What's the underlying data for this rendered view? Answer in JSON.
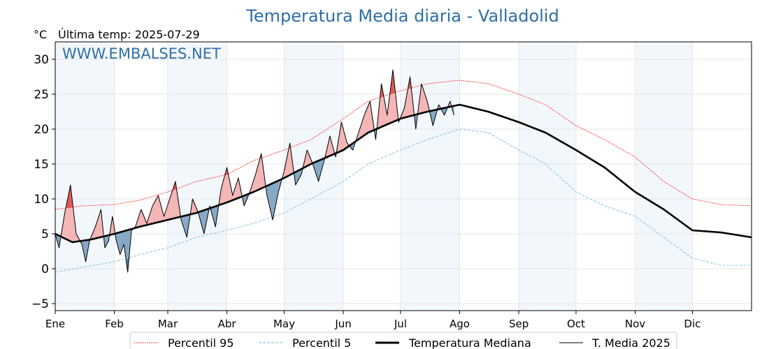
{
  "chart_data": {
    "type": "line",
    "title": "Temperatura Media diaria - Valladolid",
    "unit_label": "°C",
    "subtitle": "Última temp: 2025-07-29",
    "watermark": "WWW.EMBALSES.NET",
    "x_tick_labels": [
      "Ene",
      "Feb",
      "Mar",
      "Abr",
      "May",
      "Jun",
      "Jul",
      "Ago",
      "Sep",
      "Oct",
      "Nov",
      "Dic"
    ],
    "y_tick_labels": [
      "30",
      "25",
      "20",
      "15",
      "10",
      "5",
      "0",
      "−5"
    ],
    "y_ticks": [
      30,
      25,
      20,
      15,
      10,
      5,
      0,
      -5
    ],
    "ylim": [
      -6,
      32.5
    ],
    "xlim": [
      1,
      366
    ],
    "grid": true,
    "legend_position": "bottom-center",
    "colors": {
      "title": "#2e6fa4",
      "watermark": "#2e6fa4",
      "percentil95": "#ff0000",
      "percentil5": "#8ec9e0",
      "median": "#000000",
      "media2025": "#000000",
      "above_fill": "#f4b6b6",
      "above_p95_fill": "#e05a5a",
      "below_fill": "#87a9c8",
      "below_p5_fill": "#4f7fae",
      "band": "#f2f7fc",
      "grid": "#e6e6e6"
    },
    "series": [
      {
        "name": "Percentil 95",
        "style": "dotted-thin",
        "x": [
          1,
          15,
          32,
          45,
          60,
          75,
          91,
          105,
          121,
          135,
          152,
          165,
          182,
          196,
          213,
          228,
          244,
          258,
          274,
          289,
          305,
          320,
          335,
          350,
          366
        ],
        "y": [
          8.5,
          9.0,
          9.2,
          9.8,
          11.0,
          12.5,
          13.5,
          15.5,
          17.0,
          18.5,
          21.5,
          24.0,
          25.5,
          26.5,
          27.0,
          26.5,
          25.0,
          23.5,
          20.5,
          18.5,
          16.0,
          12.5,
          10.0,
          9.2,
          9.0
        ]
      },
      {
        "name": "Percentil 5",
        "style": "dashed-thin",
        "x": [
          1,
          15,
          32,
          45,
          60,
          75,
          91,
          105,
          121,
          135,
          152,
          165,
          182,
          196,
          213,
          228,
          244,
          258,
          274,
          289,
          305,
          320,
          335,
          350,
          366
        ],
        "y": [
          -0.5,
          0.2,
          1.0,
          2.0,
          3.0,
          4.5,
          5.5,
          6.5,
          8.0,
          10.0,
          12.5,
          15.0,
          17.0,
          18.5,
          20.0,
          19.5,
          17.0,
          15.0,
          11.0,
          9.0,
          7.5,
          4.5,
          1.5,
          0.5,
          0.5
        ]
      },
      {
        "name": "Temperatura Mediana",
        "style": "solid-thick",
        "x": [
          1,
          10,
          20,
          32,
          45,
          60,
          75,
          91,
          105,
          121,
          135,
          152,
          165,
          182,
          196,
          213,
          228,
          244,
          258,
          274,
          289,
          305,
          320,
          335,
          350,
          366
        ],
        "y": [
          5.0,
          3.8,
          4.2,
          5.0,
          6.0,
          7.0,
          8.0,
          9.5,
          11.0,
          13.0,
          15.0,
          17.0,
          19.5,
          21.5,
          22.5,
          23.5,
          22.5,
          21.0,
          19.5,
          17.0,
          14.5,
          11.0,
          8.5,
          5.5,
          5.2,
          4.5
        ]
      },
      {
        "name": "T. Media 2025",
        "style": "solid-thin",
        "x": [
          1,
          3,
          6,
          9,
          12,
          15,
          17,
          19,
          22,
          25,
          27,
          29,
          31,
          33,
          35,
          37,
          39,
          41,
          43,
          46,
          49,
          52,
          55,
          58,
          61,
          64,
          67,
          70,
          73,
          76,
          79,
          82,
          85,
          88,
          91,
          94,
          97,
          100,
          103,
          106,
          109,
          112,
          115,
          118,
          121,
          124,
          127,
          130,
          133,
          136,
          139,
          142,
          145,
          148,
          151,
          154,
          157,
          160,
          163,
          166,
          169,
          172,
          175,
          178,
          181,
          184,
          187,
          190,
          193,
          196,
          199,
          202,
          205,
          208,
          210
        ],
        "y": [
          5.0,
          3.0,
          8.0,
          12.0,
          5.0,
          3.5,
          1.0,
          4.0,
          6.0,
          8.5,
          3.0,
          4.0,
          7.5,
          4.0,
          2.0,
          3.5,
          -0.5,
          5.5,
          6.0,
          8.5,
          6.5,
          9.0,
          10.5,
          7.5,
          10.0,
          12.5,
          7.0,
          4.5,
          10.0,
          8.0,
          5.0,
          9.0,
          6.0,
          11.5,
          14.5,
          10.5,
          13.0,
          9.0,
          11.0,
          13.5,
          16.5,
          10.5,
          7.0,
          11.0,
          14.0,
          18.0,
          12.0,
          13.5,
          17.0,
          15.0,
          12.5,
          15.5,
          19.0,
          16.0,
          21.0,
          18.0,
          17.0,
          19.5,
          22.0,
          24.0,
          18.5,
          26.5,
          22.0,
          28.5,
          21.0,
          23.0,
          27.5,
          20.0,
          26.5,
          24.0,
          20.5,
          23.5,
          22.0,
          24.0,
          22.0
        ]
      }
    ]
  },
  "legend": [
    {
      "label": "Percentil 95",
      "style": "dotted-thin",
      "color": "#ff0000"
    },
    {
      "label": "Percentil 5",
      "style": "dashed-thin",
      "color": "#8ec9e0"
    },
    {
      "label": "Temperatura Mediana",
      "style": "solid-thick",
      "color": "#000000"
    },
    {
      "label": "T. Media 2025",
      "style": "solid-thin",
      "color": "#000000"
    }
  ]
}
